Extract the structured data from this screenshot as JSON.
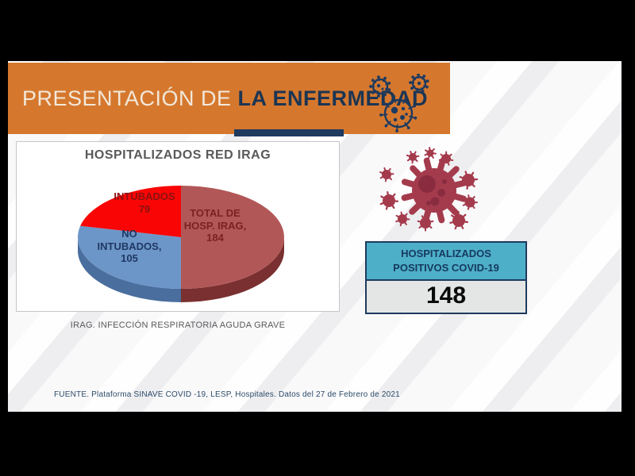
{
  "header": {
    "title_regular": "PRESENTACIÓN DE ",
    "title_bold": "LA ENFERMEDAD"
  },
  "chart_box": {
    "title": "HOSPITALIZADOS RED IRAG",
    "caption": "IRAG. INFECCIÓN RESPIRATORIA AGUDA GRAVE"
  },
  "chart_data": {
    "type": "pie",
    "style": "3d",
    "title": "HOSPITALIZADOS RED IRAG",
    "start_angle_deg": -90,
    "direction": "clockwise",
    "slices": [
      {
        "label": "TOTAL DE HOSP. IRAG",
        "value": 184,
        "color": "#B25757",
        "side_color": "#7A3030",
        "text_lines": "TOTAL DE\nHOSP. IRAG,\n184",
        "text_color": "#7A2222"
      },
      {
        "label": "NO INTUBADOS",
        "value": 105,
        "color": "#6D96C8",
        "side_color": "#4A6E9E",
        "text_lines": "NO\nINTUBADOS,\n105",
        "text_color": "#1F3864"
      },
      {
        "label": "INTUBADOS",
        "value": 79,
        "color": "#F90505",
        "side_color": "#B80000",
        "text_lines": "INTUBADOS\n79",
        "text_color": "#8B1111"
      }
    ]
  },
  "kpi": {
    "label_line1": "HOSPITALIZADOS",
    "label_line2": "POSITIVOS COVID-19",
    "value": "148"
  },
  "footer": {
    "source": "FUENTE. Plataforma SINAVE COVID -19, LESP, Hospitales. Datos del 27 de Febrero de 2021"
  },
  "icons": {
    "banner_icon": "virus-cluster-icon",
    "side_icon": "virus-icon"
  },
  "colors": {
    "orange": "#D5782E",
    "navy": "#1E3A5F",
    "teal": "#4EAFC9",
    "value_box_gray": "#E4E6E5",
    "crimson_virus": "#A43B4D",
    "crimson_virus_inner": "#8A2C3F",
    "banner_text_light": "#F2E8DA",
    "banner_text_dark": "#1C3553",
    "chart_title_gray": "#595959"
  }
}
